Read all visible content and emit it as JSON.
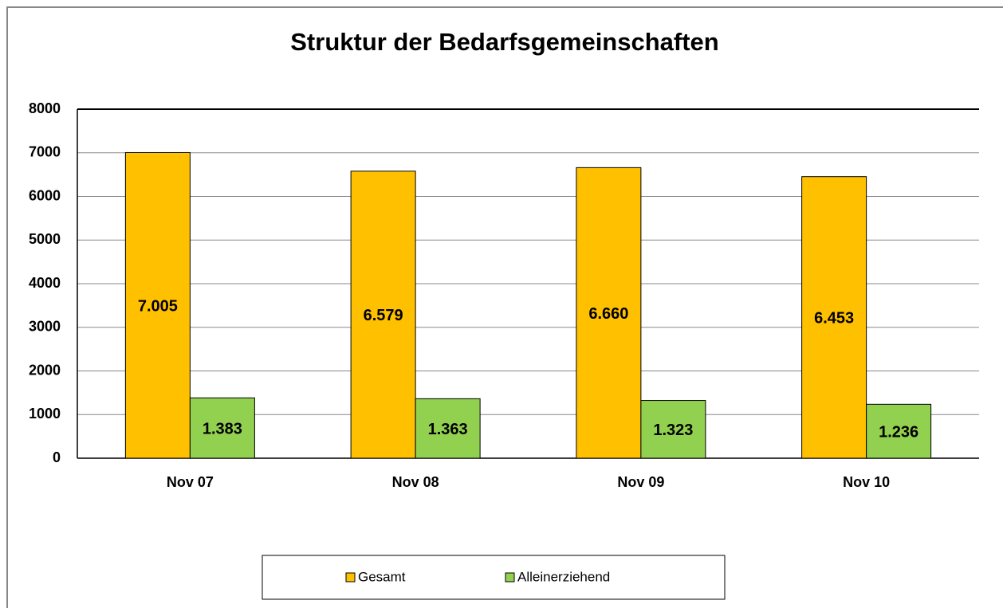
{
  "chart_data": {
    "type": "bar",
    "title": "Struktur der Bedarfsgemeinschaften",
    "categories": [
      "Nov 07",
      "Nov 08",
      "Nov 09",
      "Nov 10"
    ],
    "series": [
      {
        "name": "Gesamt",
        "color": "#ffc000",
        "values": [
          7005,
          6579,
          6660,
          6453
        ],
        "value_labels": [
          "7.005",
          "6.579",
          "6.660",
          "6.453"
        ]
      },
      {
        "name": "Alleinerziehend",
        "color": "#92d050",
        "values": [
          1383,
          1363,
          1323,
          1236
        ],
        "value_labels": [
          "1.383",
          "1.363",
          "1.323",
          "1.236"
        ]
      }
    ],
    "ylim": [
      0,
      8000
    ],
    "yticks": [
      0,
      1000,
      2000,
      3000,
      4000,
      5000,
      6000,
      7000,
      8000
    ],
    "grid": true,
    "legend": "bottom"
  }
}
